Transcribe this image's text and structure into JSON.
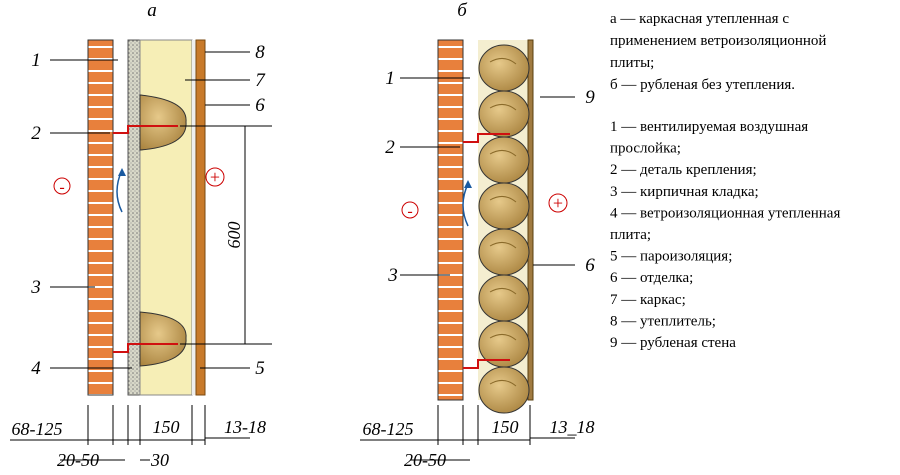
{
  "diagrams": [
    {
      "label": "а",
      "callouts": [
        "1",
        "2",
        "3",
        "4",
        "8",
        "7",
        "6",
        "5"
      ],
      "minus": "-",
      "plus": "+",
      "dimension": "600",
      "dims": [
        "68-125",
        "20-50",
        "30",
        "150",
        "13-18"
      ]
    },
    {
      "label": "б",
      "callouts": [
        "1",
        "2",
        "3",
        "9",
        "6"
      ],
      "minus": "-",
      "plus": "+",
      "dims": [
        "68-125",
        "20-50",
        "150",
        "13_18"
      ]
    }
  ],
  "legend": {
    "types": [
      [
        "а — каркасная утепленная с",
        "применением ветроизоляционной",
        "плиты;"
      ],
      [
        "б — рубленая без утепления."
      ]
    ],
    "items": [
      [
        "1 — вентилируемая воздушная",
        "прослойка;"
      ],
      [
        "2 — деталь крепления;"
      ],
      [
        "3 — кирпичная кладка;"
      ],
      [
        "4 — ветроизоляционная утепленная",
        "плита;"
      ],
      [
        "5 — пароизоляция;"
      ],
      [
        "6 — отделка;"
      ],
      [
        "7 — каркас;"
      ],
      [
        "8 — утеплитель;"
      ],
      [
        "9 — рубленая стена"
      ]
    ]
  }
}
